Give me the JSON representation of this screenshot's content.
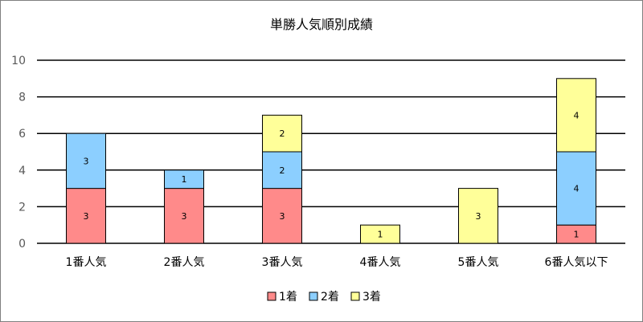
{
  "chart_data": {
    "type": "bar",
    "stacked": true,
    "title": "単勝人気順別成績",
    "xlabel": "",
    "ylabel": "",
    "ylim": [
      0,
      10
    ],
    "yticks": [
      0,
      2,
      4,
      6,
      8,
      10
    ],
    "grid": true,
    "legend_position": "bottom",
    "categories": [
      "1番人気",
      "2番人気",
      "3番人気",
      "4番人気",
      "5番人気",
      "6番人気以下"
    ],
    "series": [
      {
        "name": "1着",
        "color": "#ff8a8a",
        "values": [
          3,
          3,
          3,
          0,
          0,
          1
        ]
      },
      {
        "name": "2着",
        "color": "#8ccfff",
        "values": [
          3,
          1,
          2,
          0,
          0,
          4
        ]
      },
      {
        "name": "3着",
        "color": "#ffff99",
        "values": [
          0,
          0,
          2,
          1,
          3,
          4
        ]
      }
    ]
  }
}
